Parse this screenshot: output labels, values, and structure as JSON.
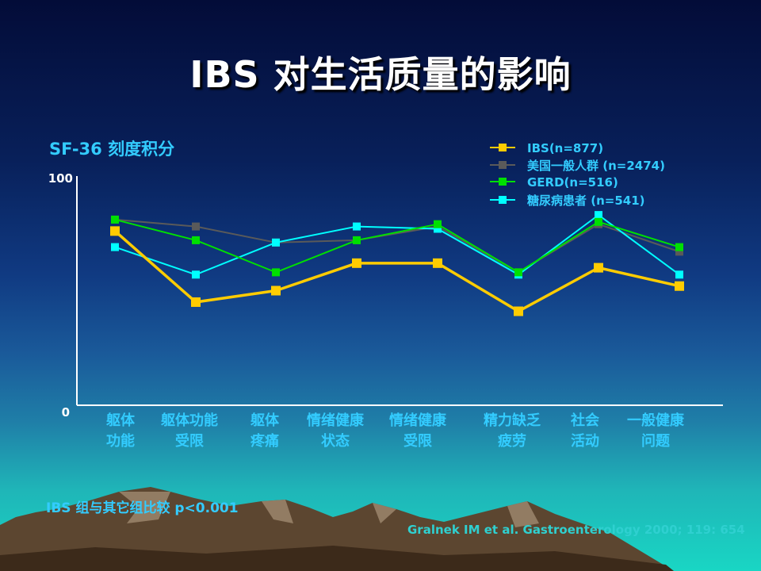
{
  "slide": {
    "title": "IBS 对生活质量的影响",
    "chart_label": "SF-36 刻度积分",
    "note": "IBS 组与其它组比较 p<0.001",
    "citation": "Gralnek IM et al. Gastroenterology 2000; 119: 654"
  },
  "colors": {
    "background_top": "#030c38",
    "background_bottom": "#19d6c4",
    "axis": "#ffffff",
    "label_text": "#33ccff"
  },
  "chart_data": {
    "type": "line",
    "categories": [
      [
        "躯体",
        "功能"
      ],
      [
        "躯体功能",
        "受限"
      ],
      [
        "躯体",
        "疼痛"
      ],
      [
        "情绪健康",
        "状态"
      ],
      [
        "情绪健康",
        "受限"
      ],
      [
        "精力缺乏",
        "疲劳"
      ],
      [
        "社会",
        "活动"
      ],
      [
        "一般健康",
        "问题"
      ]
    ],
    "y_ticks": [
      "0",
      "100"
    ],
    "ylim": [
      0,
      100
    ],
    "legend_position": "top-right",
    "series": [
      {
        "name": "IBS(n=877)",
        "color": "#ffcc00",
        "values": [
          76,
          45,
          50,
          62,
          62,
          41,
          60,
          52
        ]
      },
      {
        "name": "美国一般人群 (n=2474)",
        "color": "#5a5a5a",
        "values": [
          81,
          78,
          71,
          72,
          78,
          58,
          79,
          67
        ]
      },
      {
        "name": "GERD(n=516)",
        "color": "#00e000",
        "values": [
          81,
          72,
          58,
          72,
          79,
          58,
          80,
          69
        ]
      },
      {
        "name": "糖尿病患者 (n=541)",
        "color": "#00ffff",
        "values": [
          69,
          57,
          71,
          78,
          77,
          57,
          83,
          57
        ]
      }
    ]
  }
}
